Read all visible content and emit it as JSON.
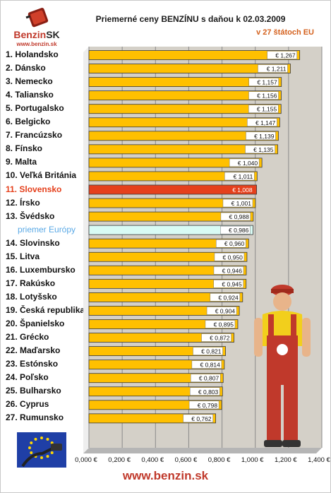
{
  "header": {
    "logo_name": "Benzin",
    "logo_suffix": "SK",
    "logo_url": "www.benzin.sk",
    "title": "Priemerné ceny BENZÍNU s daňou k 02.03.2009",
    "subtitle": "v 27 štátoch EU"
  },
  "footer": {
    "url": "www.benzin.sk"
  },
  "colors": {
    "bar": "#ffc000",
    "bar_highlight": "#e5401c",
    "bar_average": "#d8fbf4",
    "plot_bg": "#d4d0c8",
    "label_text": "#111111",
    "highlight_text": "#e5401c",
    "average_text": "#5aa9e6"
  },
  "chart_data": {
    "type": "bar",
    "orientation": "horizontal",
    "title": "Priemerné ceny BENZÍNU s daňou k 02.03.2009",
    "subtitle": "v 27 štátoch EU",
    "xlim": [
      0,
      1.4
    ],
    "x_ticks": [
      "0,000 €",
      "0,200 €",
      "0,400 €",
      "0,600 €",
      "0,800 €",
      "1,000 €",
      "1,200 €",
      "1,400 €"
    ],
    "grid": true,
    "categories": [
      "1. Holandsko",
      "2. Dánsko",
      "3. Nemecko",
      "4. Taliansko",
      "5. Portugalsko",
      "6. Belgicko",
      "7. Francúzsko",
      "8. Fínsko",
      "9. Malta",
      "10. Veľká Británia",
      "11. Slovensko",
      "12. Írsko",
      "13. Švédsko",
      "priemer Európy",
      "14. Slovinsko",
      "15. Litva",
      "16. Luxembursko",
      "17. Rakúsko",
      "18. Lotyšsko",
      "19. Česká republika",
      "20. Španielsko",
      "21. Grécko",
      "22. Maďarsko",
      "23. Estónsko",
      "24. Poľsko",
      "25. Bulharsko",
      "26. Cyprus",
      "27. Rumunsko"
    ],
    "values": [
      1.267,
      1.211,
      1.157,
      1.156,
      1.155,
      1.147,
      1.139,
      1.135,
      1.04,
      1.011,
      1.008,
      1.001,
      0.988,
      0.986,
      0.96,
      0.95,
      0.946,
      0.945,
      0.924,
      0.904,
      0.895,
      0.872,
      0.821,
      0.814,
      0.807,
      0.803,
      0.798,
      0.762
    ],
    "value_labels": [
      "€ 1,267",
      "€ 1,211",
      "€ 1,157",
      "€ 1,156",
      "€ 1,155",
      "€ 1,147",
      "€ 1,139",
      "€ 1,135",
      "€ 1,040",
      "€ 1,011",
      "€ 1,008",
      "€ 1,001",
      "€ 0,988",
      "€ 0,986",
      "€ 0,960",
      "€ 0,950",
      "€ 0,946",
      "€ 0,945",
      "€ 0,924",
      "€ 0,904",
      "€ 0,895",
      "€ 0,872",
      "€ 0,821",
      "€ 0,814",
      "€ 0,807",
      "€ 0,803",
      "€ 0,798",
      "€ 0,762"
    ],
    "highlight": "11. Slovensko",
    "average": "priemer Európy"
  },
  "illustrations": {
    "eu_flag": "eu-flag-with-fuel-nozzle-icon",
    "worker": "gas-station-worker-mascot-icon"
  }
}
